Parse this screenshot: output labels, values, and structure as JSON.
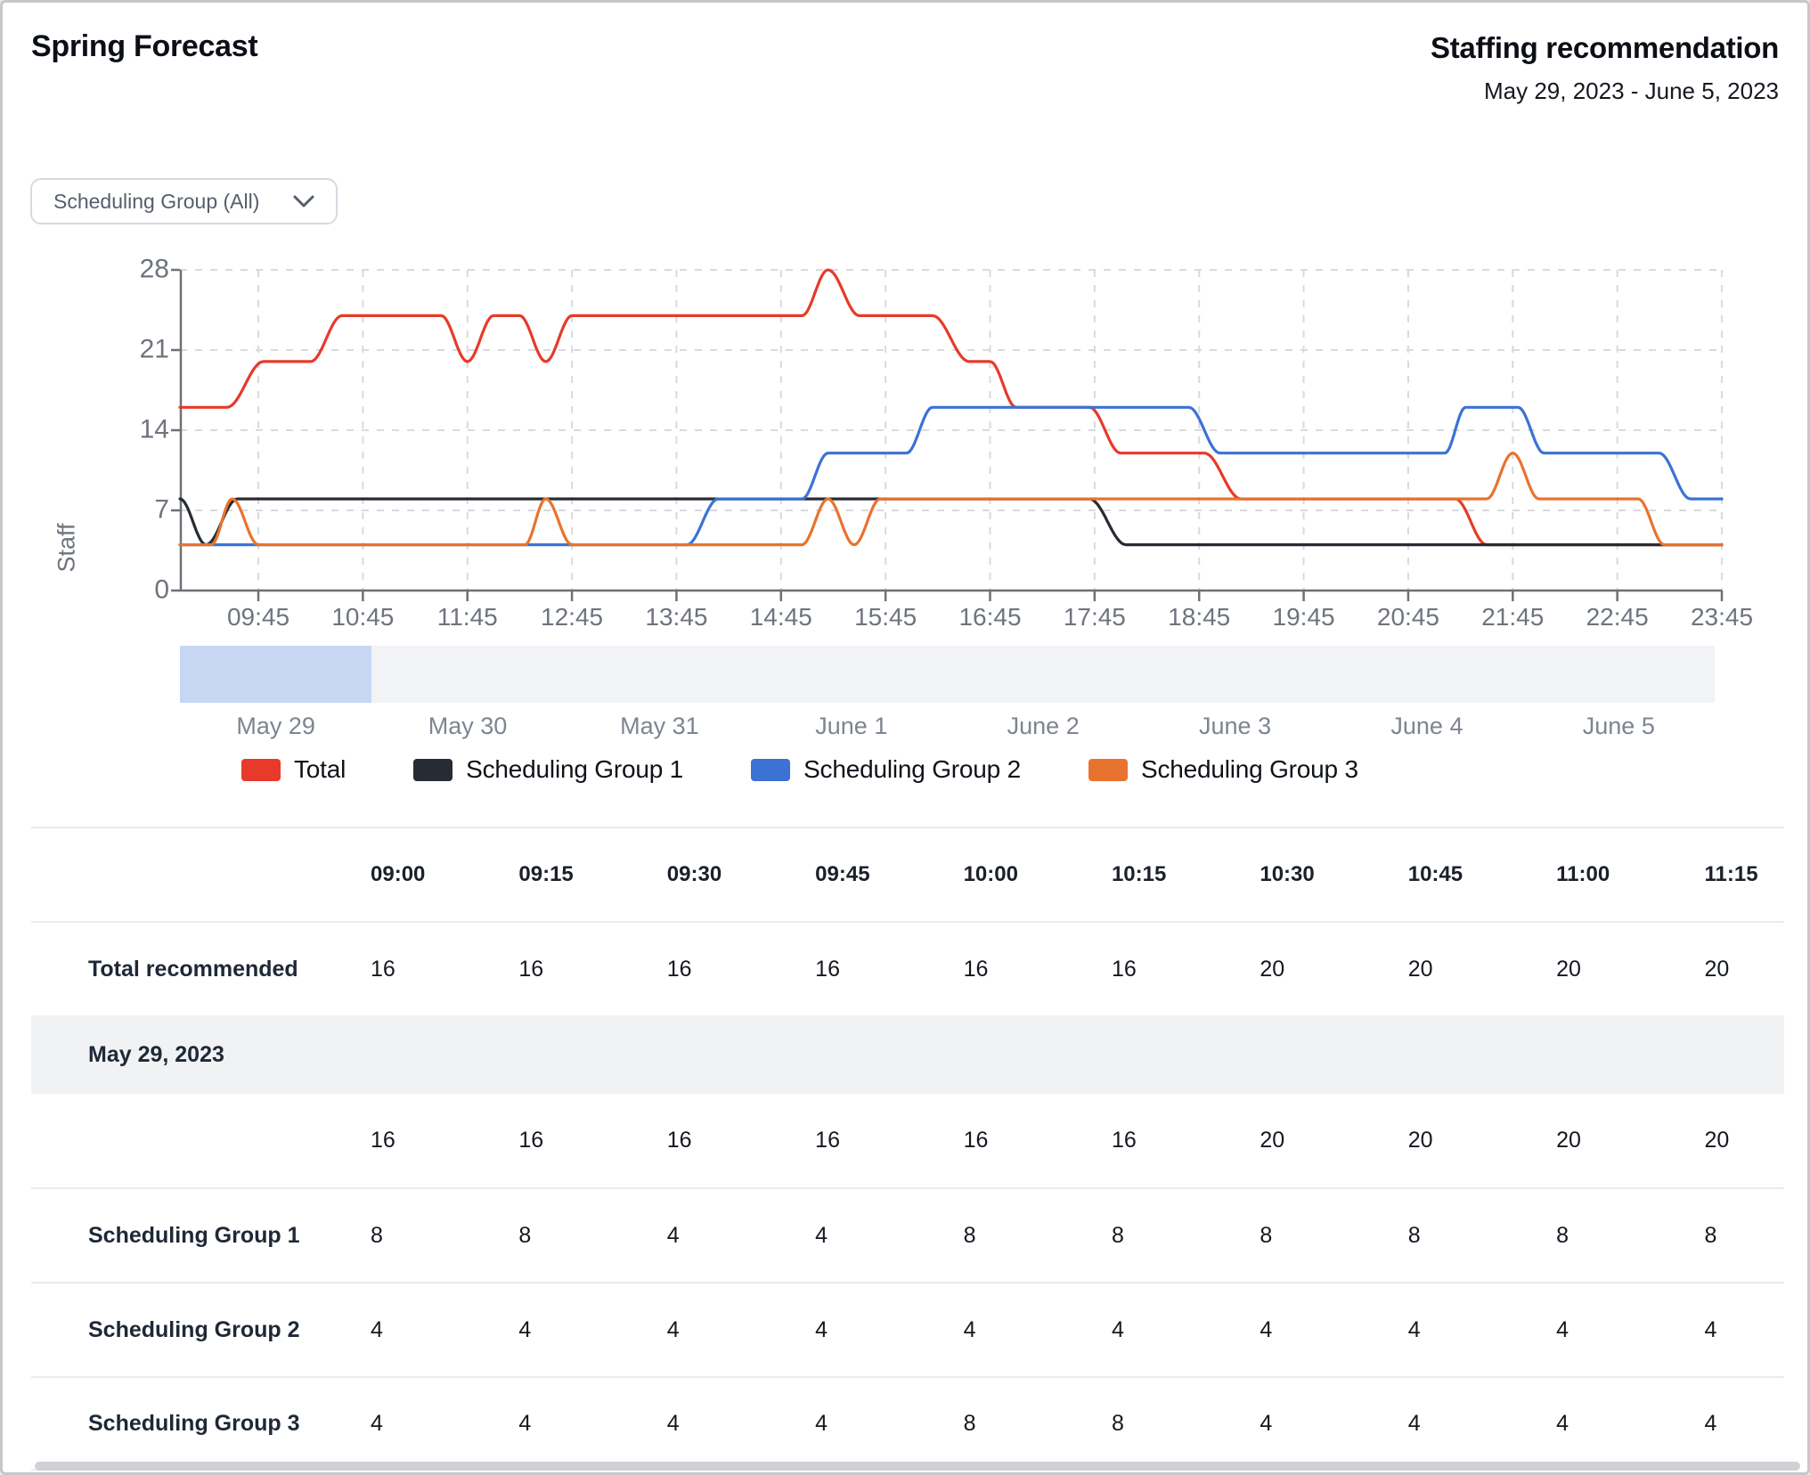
{
  "page": {
    "title": "Spring Forecast"
  },
  "header": {
    "title": "Staffing recommendation",
    "date_range": "May 29, 2023 - June 5, 2023"
  },
  "filter": {
    "selected": "Scheduling Group (All)"
  },
  "chart_data": {
    "type": "line",
    "ylabel": "Staff",
    "ylim": [
      0,
      28
    ],
    "y_ticks": [
      0,
      7,
      14,
      21,
      28
    ],
    "x_unit": "time of day (hours, May 29)",
    "x_range": [
      9.0,
      23.75
    ],
    "x_tick_hours": [
      9.75,
      10.75,
      11.75,
      12.75,
      13.75,
      14.75,
      15.75,
      16.75,
      17.75,
      18.75,
      19.75,
      20.75,
      21.75,
      22.75,
      23.75
    ],
    "x_tick_labels": [
      "09:45",
      "10:45",
      "11:45",
      "12:45",
      "13:45",
      "14:45",
      "15:45",
      "16:45",
      "17:45",
      "18:45",
      "19:45",
      "20:45",
      "21:45",
      "22:45",
      "23:45"
    ],
    "grid": "dashed",
    "legend_position": "bottom",
    "series": [
      {
        "name": "Total",
        "color": "#e73a2a",
        "points": [
          [
            9.0,
            16
          ],
          [
            9.45,
            16
          ],
          [
            9.8,
            20
          ],
          [
            10.25,
            20
          ],
          [
            10.55,
            24
          ],
          [
            11.5,
            24
          ],
          [
            11.75,
            20
          ],
          [
            12.0,
            24
          ],
          [
            12.25,
            24
          ],
          [
            12.5,
            20
          ],
          [
            12.75,
            24
          ],
          [
            14.95,
            24
          ],
          [
            15.2,
            28
          ],
          [
            15.5,
            24
          ],
          [
            16.2,
            24
          ],
          [
            16.55,
            20
          ],
          [
            16.75,
            20
          ],
          [
            17.0,
            16
          ],
          [
            17.7,
            16
          ],
          [
            18.0,
            12
          ],
          [
            18.8,
            12
          ],
          [
            19.15,
            8
          ],
          [
            21.2,
            8
          ],
          [
            21.5,
            4
          ],
          [
            23.75,
            4
          ]
        ]
      },
      {
        "name": "Scheduling Group 1",
        "color": "#272b33",
        "points": [
          [
            9.0,
            8
          ],
          [
            9.25,
            4
          ],
          [
            9.55,
            8
          ],
          [
            17.7,
            8
          ],
          [
            18.05,
            4
          ],
          [
            23.75,
            4
          ]
        ]
      },
      {
        "name": "Scheduling Group 2",
        "color": "#3b73d4",
        "points": [
          [
            9.0,
            4
          ],
          [
            13.85,
            4
          ],
          [
            14.15,
            8
          ],
          [
            14.95,
            8
          ],
          [
            15.2,
            12
          ],
          [
            15.95,
            12
          ],
          [
            16.2,
            16
          ],
          [
            18.65,
            16
          ],
          [
            18.95,
            12
          ],
          [
            21.1,
            12
          ],
          [
            21.3,
            16
          ],
          [
            21.8,
            16
          ],
          [
            22.05,
            12
          ],
          [
            23.15,
            12
          ],
          [
            23.45,
            8
          ],
          [
            23.75,
            8
          ]
        ]
      },
      {
        "name": "Scheduling Group 3",
        "color": "#e8732e",
        "points": [
          [
            9.0,
            4
          ],
          [
            9.3,
            4
          ],
          [
            9.5,
            8
          ],
          [
            9.75,
            4
          ],
          [
            12.3,
            4
          ],
          [
            12.5,
            8
          ],
          [
            12.75,
            4
          ],
          [
            14.95,
            4
          ],
          [
            15.2,
            8
          ],
          [
            15.45,
            4
          ],
          [
            15.7,
            8
          ],
          [
            21.5,
            8
          ],
          [
            21.75,
            12
          ],
          [
            22.0,
            8
          ],
          [
            22.95,
            8
          ],
          [
            23.2,
            4
          ],
          [
            23.75,
            4
          ]
        ]
      }
    ]
  },
  "timeline": {
    "days": [
      "May 29",
      "May 30",
      "May 31",
      "June 1",
      "June 2",
      "June 3",
      "June 4",
      "June 5"
    ],
    "highlighted_day": "May 29"
  },
  "legend": {
    "items": [
      {
        "label": "Total",
        "color": "#e73a2a"
      },
      {
        "label": "Scheduling Group 1",
        "color": "#272b33"
      },
      {
        "label": "Scheduling Group 2",
        "color": "#3b73d4"
      },
      {
        "label": "Scheduling Group 3",
        "color": "#e8732e"
      }
    ]
  },
  "table": {
    "time_columns": [
      "09:00",
      "09:15",
      "09:30",
      "09:45",
      "10:00",
      "10:15",
      "10:30",
      "10:45",
      "11:00",
      "11:15"
    ],
    "rows": [
      {
        "type": "total",
        "label": "Total recommended",
        "values": [
          16,
          16,
          16,
          16,
          16,
          16,
          20,
          20,
          20,
          20
        ]
      },
      {
        "type": "section",
        "label": "May 29, 2023"
      },
      {
        "type": "subtotal",
        "label": "",
        "values": [
          16,
          16,
          16,
          16,
          16,
          16,
          20,
          20,
          20,
          20
        ]
      },
      {
        "type": "group",
        "label": "Scheduling Group 1",
        "values": [
          8,
          8,
          4,
          4,
          8,
          8,
          8,
          8,
          8,
          8
        ]
      },
      {
        "type": "group",
        "label": "Scheduling Group 2",
        "values": [
          4,
          4,
          4,
          4,
          4,
          4,
          4,
          4,
          4,
          4
        ]
      },
      {
        "type": "group",
        "label": "Scheduling Group 3",
        "values": [
          4,
          4,
          4,
          4,
          8,
          8,
          4,
          4,
          4,
          4
        ]
      }
    ]
  }
}
